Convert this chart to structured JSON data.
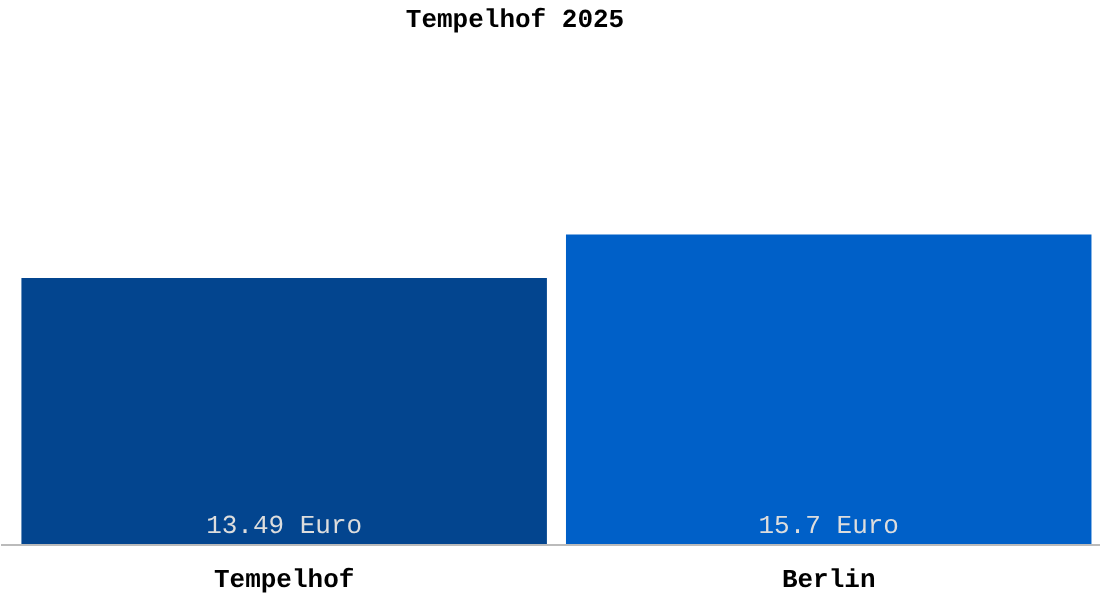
{
  "chart_data": {
    "type": "bar",
    "title": "Tempelhof 2025",
    "categories": [
      "Tempelhof",
      "Berlin"
    ],
    "values": [
      13.49,
      15.7
    ],
    "colors": [
      "#03458f",
      "#0060c8"
    ],
    "value_labels": [
      "13.49 Euro",
      "15.7 Euro"
    ],
    "grid": false
  }
}
